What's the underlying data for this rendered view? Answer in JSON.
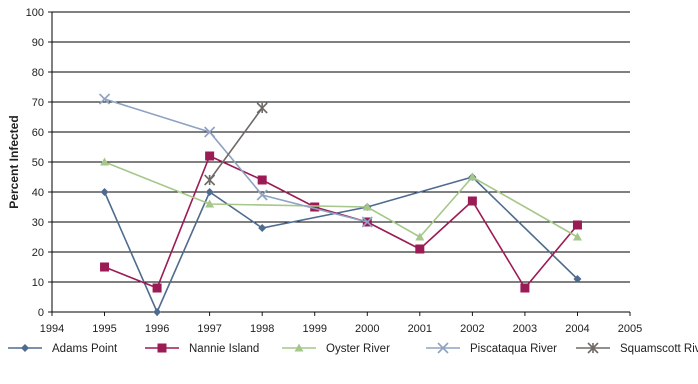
{
  "chart_data": {
    "type": "line",
    "title": "",
    "xlabel": "",
    "ylabel": "Percent Infected",
    "xlim": [
      1994,
      2005
    ],
    "ylim": [
      0,
      100
    ],
    "x_ticks": [
      "1994",
      "1995",
      "1996",
      "1997",
      "1998",
      "1999",
      "2000",
      "2001",
      "2002",
      "2003",
      "2004",
      "2005"
    ],
    "y_ticks": [
      "0",
      "10",
      "20",
      "30",
      "40",
      "50",
      "60",
      "70",
      "80",
      "90",
      "100"
    ],
    "grid": "horizontal",
    "legend_position": "bottom",
    "series": [
      {
        "name": "Adams Point",
        "color": "#4f6b8f",
        "marker": "diamond",
        "points": [
          [
            1995,
            40
          ],
          [
            1996,
            0
          ],
          [
            1997,
            40
          ],
          [
            1998,
            28
          ],
          [
            2000,
            35
          ],
          [
            2002,
            45
          ],
          [
            2004,
            11
          ]
        ]
      },
      {
        "name": "Nannie Island",
        "color": "#9b1b54",
        "marker": "square",
        "points": [
          [
            1995,
            15
          ],
          [
            1996,
            8
          ],
          [
            1997,
            52
          ],
          [
            1998,
            44
          ],
          [
            1999,
            35
          ],
          [
            2000,
            30
          ],
          [
            2001,
            21
          ],
          [
            2002,
            37
          ],
          [
            2003,
            8
          ],
          [
            2004,
            29
          ]
        ]
      },
      {
        "name": "Oyster River",
        "color": "#a6c78a",
        "marker": "triangle",
        "points": [
          [
            1995,
            50
          ],
          [
            1997,
            36
          ],
          [
            2000,
            35
          ],
          [
            2001,
            25
          ],
          [
            2002,
            45
          ],
          [
            2004,
            25
          ]
        ]
      },
      {
        "name": "Piscataqua River",
        "color": "#8fa2c2",
        "marker": "x",
        "points": [
          [
            1995,
            71
          ],
          [
            1997,
            60
          ],
          [
            1998,
            39
          ],
          [
            2000,
            30
          ]
        ]
      },
      {
        "name": "Squamscott River",
        "color": "#6f6a66",
        "marker": "star",
        "points": [
          [
            1997,
            44
          ],
          [
            1998,
            68
          ]
        ]
      }
    ]
  }
}
